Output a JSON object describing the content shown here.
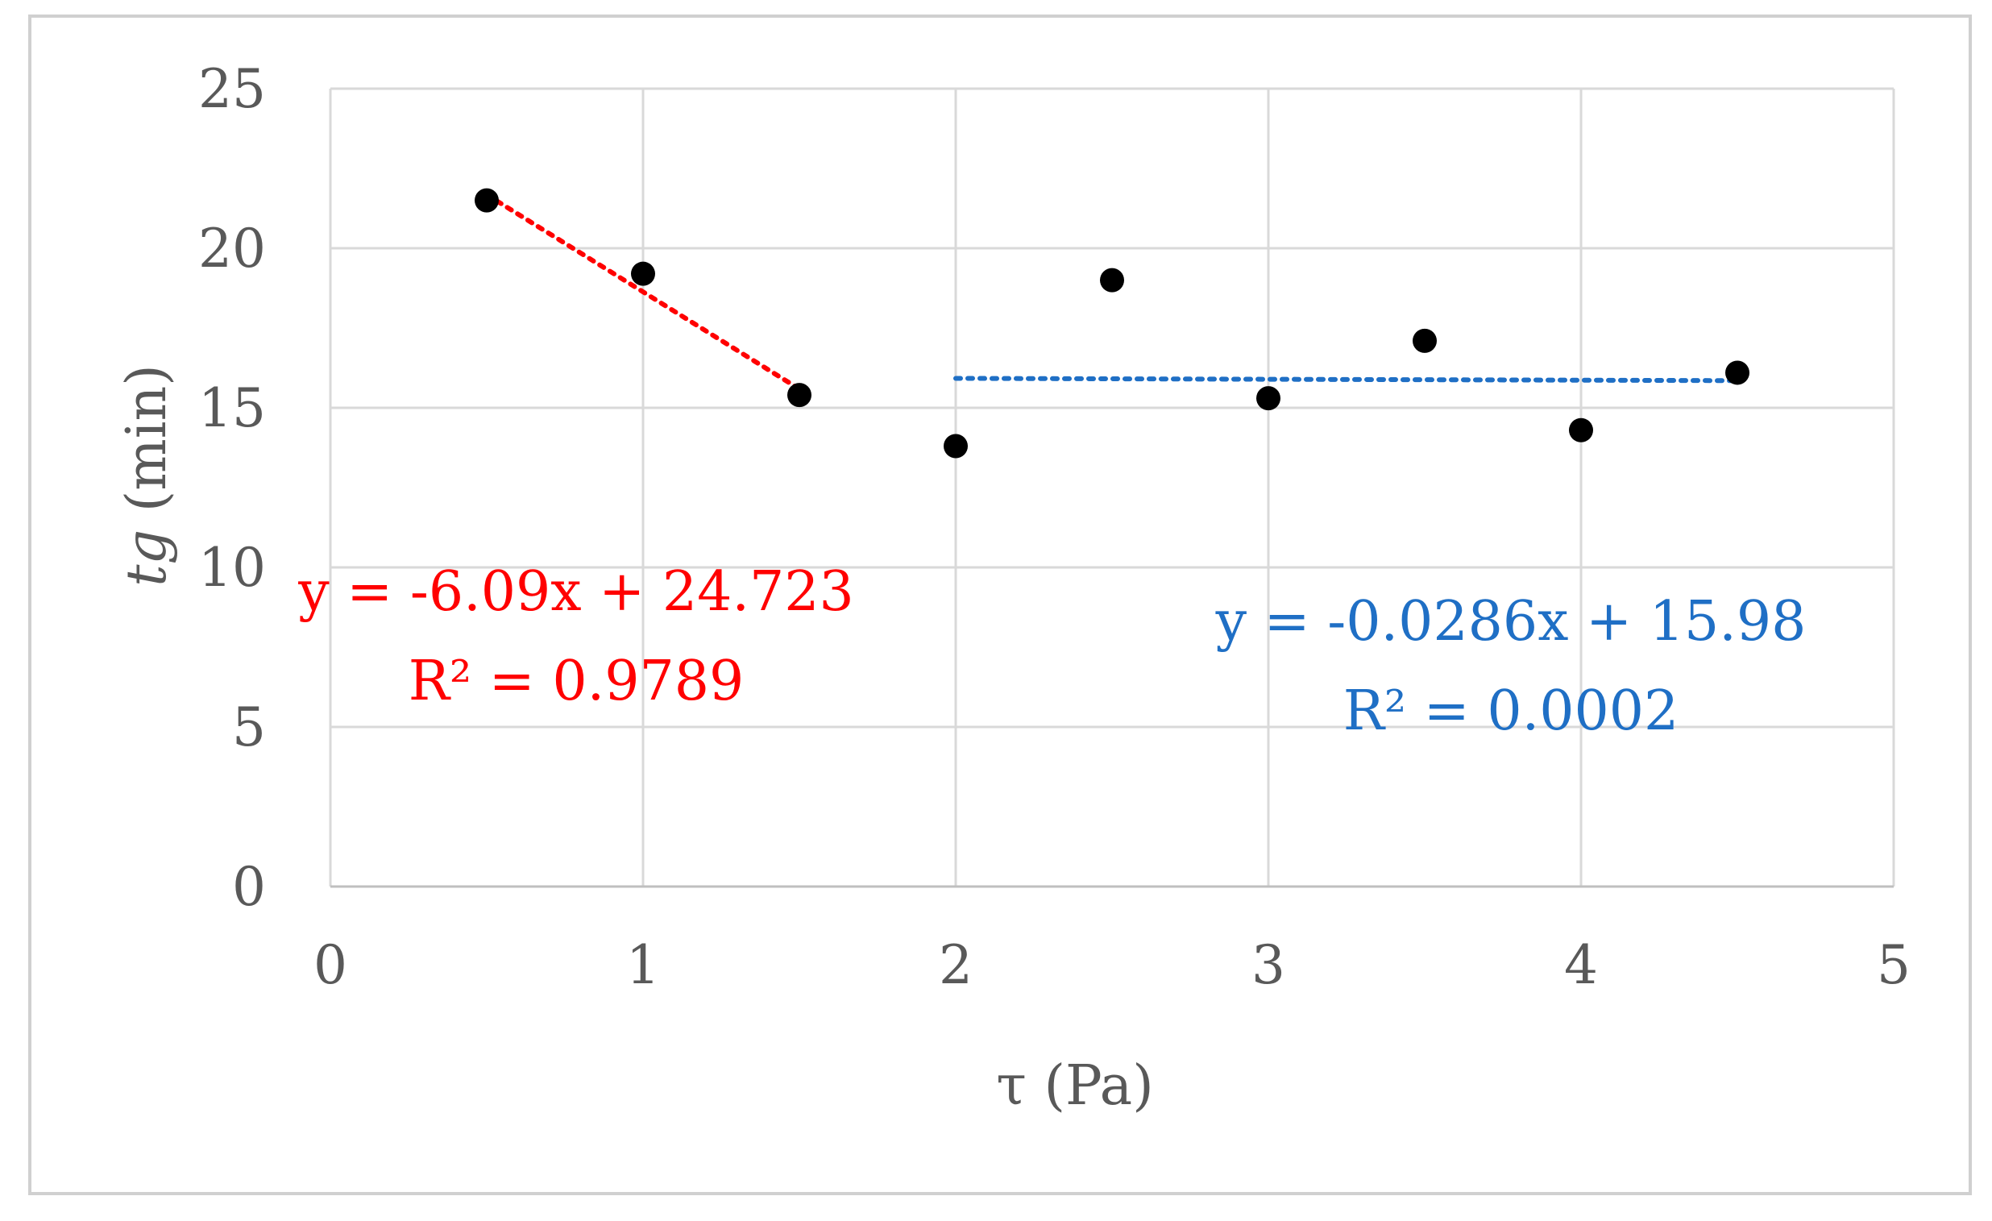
{
  "chart_data": {
    "type": "scatter",
    "xlabel": "τ (Pa)",
    "ylabel_italic": "tg",
    "ylabel_rest": " (min)",
    "xlim": [
      0,
      5
    ],
    "ylim": [
      0,
      25
    ],
    "x_ticks": [
      0,
      1,
      2,
      3,
      4,
      5
    ],
    "y_ticks": [
      0,
      5,
      10,
      15,
      20,
      25
    ],
    "grid": true,
    "point_color": "#000000",
    "series": [
      {
        "x": [
          0.5,
          1.0,
          1.5,
          2.0,
          2.5,
          3.0,
          3.5,
          4.0,
          4.5
        ],
        "y": [
          21.5,
          19.2,
          15.4,
          13.8,
          19.0,
          15.3,
          17.1,
          14.3,
          16.1
        ]
      }
    ],
    "trendlines": [
      {
        "x_range": [
          0.5,
          1.5
        ],
        "slope": -6.09,
        "intercept": 24.723,
        "color": "#ff0000",
        "style": "dotted",
        "equation": "y = -6.09x + 24.723",
        "r2": "R² = 0.9789"
      },
      {
        "x_range": [
          2.0,
          4.5
        ],
        "slope": -0.0286,
        "intercept": 15.98,
        "color": "#1f6fc5",
        "style": "dotted",
        "equation": "y = -0.0286x + 15.98",
        "r2": "R² = 0.0002"
      }
    ]
  }
}
